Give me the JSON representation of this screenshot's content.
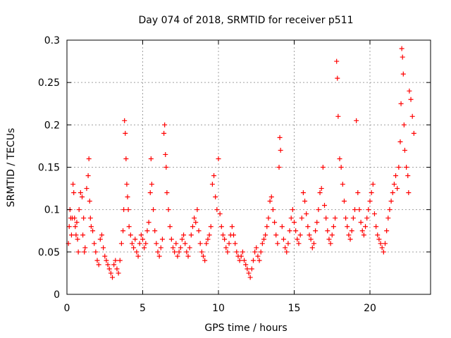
{
  "chart_data": {
    "type": "scatter",
    "title": "Day 074 of 2018, SRMTID for receiver p511",
    "xlabel": "GPS time / hours",
    "ylabel": "SRMTID / TECUs",
    "xlim": [
      0,
      24
    ],
    "ylim": [
      0,
      0.3
    ],
    "x_ticks": [
      0,
      5,
      10,
      15,
      20
    ],
    "x_tick_labels": [
      "0",
      "5",
      "10",
      "15",
      "20"
    ],
    "y_ticks": [
      0,
      0.05,
      0.1,
      0.15,
      0.2,
      0.25,
      0.3
    ],
    "y_tick_labels": [
      "0",
      "0.05",
      "0.1",
      "0.15",
      "0.2",
      "0.25",
      "0.3"
    ],
    "grid": true,
    "marker": "+",
    "color": "#ff0000",
    "series": [
      {
        "name": "SRMTID",
        "points": [
          [
            0.1,
            0.06
          ],
          [
            0.15,
            0.08
          ],
          [
            0.2,
            0.1
          ],
          [
            0.25,
            0.09
          ],
          [
            0.3,
            0.07
          ],
          [
            0.35,
            0.09
          ],
          [
            0.4,
            0.13
          ],
          [
            0.45,
            0.12
          ],
          [
            0.5,
            0.09
          ],
          [
            0.55,
            0.08
          ],
          [
            0.6,
            0.07
          ],
          [
            0.65,
            0.085
          ],
          [
            0.7,
            0.065
          ],
          [
            0.75,
            0.05
          ],
          [
            0.8,
            0.1
          ],
          [
            0.9,
            0.12
          ],
          [
            1.0,
            0.115
          ],
          [
            1.05,
            0.07
          ],
          [
            1.1,
            0.09
          ],
          [
            1.15,
            0.05
          ],
          [
            1.2,
            0.055
          ],
          [
            1.3,
            0.125
          ],
          [
            1.4,
            0.14
          ],
          [
            1.45,
            0.16
          ],
          [
            1.5,
            0.11
          ],
          [
            1.55,
            0.09
          ],
          [
            1.6,
            0.08
          ],
          [
            1.7,
            0.075
          ],
          [
            1.8,
            0.06
          ],
          [
            1.9,
            0.05
          ],
          [
            2.0,
            0.04
          ],
          [
            2.1,
            0.035
          ],
          [
            2.2,
            0.065
          ],
          [
            2.3,
            0.07
          ],
          [
            2.4,
            0.055
          ],
          [
            2.5,
            0.045
          ],
          [
            2.6,
            0.04
          ],
          [
            2.7,
            0.035
          ],
          [
            2.8,
            0.03
          ],
          [
            2.9,
            0.025
          ],
          [
            3.0,
            0.02
          ],
          [
            3.1,
            0.035
          ],
          [
            3.2,
            0.04
          ],
          [
            3.3,
            0.03
          ],
          [
            3.4,
            0.025
          ],
          [
            3.5,
            0.04
          ],
          [
            3.6,
            0.06
          ],
          [
            3.7,
            0.075
          ],
          [
            3.75,
            0.1
          ],
          [
            3.8,
            0.205
          ],
          [
            3.85,
            0.19
          ],
          [
            3.9,
            0.16
          ],
          [
            3.95,
            0.13
          ],
          [
            4.0,
            0.115
          ],
          [
            4.05,
            0.1
          ],
          [
            4.1,
            0.08
          ],
          [
            4.2,
            0.07
          ],
          [
            4.3,
            0.06
          ],
          [
            4.4,
            0.055
          ],
          [
            4.5,
            0.065
          ],
          [
            4.6,
            0.05
          ],
          [
            4.7,
            0.045
          ],
          [
            4.8,
            0.06
          ],
          [
            4.9,
            0.07
          ],
          [
            5.0,
            0.065
          ],
          [
            5.1,
            0.055
          ],
          [
            5.2,
            0.06
          ],
          [
            5.3,
            0.075
          ],
          [
            5.4,
            0.085
          ],
          [
            5.5,
            0.12
          ],
          [
            5.55,
            0.16
          ],
          [
            5.6,
            0.13
          ],
          [
            5.7,
            0.1
          ],
          [
            5.8,
            0.075
          ],
          [
            5.9,
            0.06
          ],
          [
            6.0,
            0.05
          ],
          [
            6.1,
            0.045
          ],
          [
            6.2,
            0.055
          ],
          [
            6.3,
            0.065
          ],
          [
            6.4,
            0.19
          ],
          [
            6.45,
            0.2
          ],
          [
            6.5,
            0.165
          ],
          [
            6.55,
            0.15
          ],
          [
            6.6,
            0.12
          ],
          [
            6.7,
            0.1
          ],
          [
            6.8,
            0.08
          ],
          [
            6.9,
            0.065
          ],
          [
            7.0,
            0.055
          ],
          [
            7.1,
            0.05
          ],
          [
            7.2,
            0.06
          ],
          [
            7.3,
            0.045
          ],
          [
            7.4,
            0.05
          ],
          [
            7.5,
            0.055
          ],
          [
            7.6,
            0.065
          ],
          [
            7.7,
            0.07
          ],
          [
            7.8,
            0.06
          ],
          [
            7.9,
            0.05
          ],
          [
            8.0,
            0.045
          ],
          [
            8.1,
            0.055
          ],
          [
            8.2,
            0.07
          ],
          [
            8.3,
            0.08
          ],
          [
            8.4,
            0.09
          ],
          [
            8.5,
            0.085
          ],
          [
            8.6,
            0.1
          ],
          [
            8.7,
            0.075
          ],
          [
            8.8,
            0.06
          ],
          [
            8.9,
            0.05
          ],
          [
            9.0,
            0.045
          ],
          [
            9.1,
            0.04
          ],
          [
            9.2,
            0.06
          ],
          [
            9.3,
            0.065
          ],
          [
            9.4,
            0.07
          ],
          [
            9.5,
            0.08
          ],
          [
            9.6,
            0.13
          ],
          [
            9.7,
            0.14
          ],
          [
            9.8,
            0.115
          ],
          [
            9.9,
            0.1
          ],
          [
            10.0,
            0.16
          ],
          [
            10.1,
            0.095
          ],
          [
            10.2,
            0.08
          ],
          [
            10.3,
            0.07
          ],
          [
            10.4,
            0.065
          ],
          [
            10.5,
            0.055
          ],
          [
            10.6,
            0.05
          ],
          [
            10.7,
            0.06
          ],
          [
            10.8,
            0.07
          ],
          [
            10.9,
            0.08
          ],
          [
            11.0,
            0.07
          ],
          [
            11.1,
            0.06
          ],
          [
            11.2,
            0.05
          ],
          [
            11.3,
            0.045
          ],
          [
            11.4,
            0.04
          ],
          [
            11.5,
            0.045
          ],
          [
            11.6,
            0.05
          ],
          [
            11.7,
            0.04
          ],
          [
            11.8,
            0.035
          ],
          [
            11.9,
            0.03
          ],
          [
            12.0,
            0.025
          ],
          [
            12.1,
            0.02
          ],
          [
            12.2,
            0.03
          ],
          [
            12.3,
            0.04
          ],
          [
            12.4,
            0.05
          ],
          [
            12.5,
            0.055
          ],
          [
            12.6,
            0.045
          ],
          [
            12.7,
            0.04
          ],
          [
            12.8,
            0.05
          ],
          [
            12.9,
            0.06
          ],
          [
            13.0,
            0.065
          ],
          [
            13.1,
            0.07
          ],
          [
            13.2,
            0.08
          ],
          [
            13.3,
            0.09
          ],
          [
            13.4,
            0.11
          ],
          [
            13.5,
            0.115
          ],
          [
            13.6,
            0.1
          ],
          [
            13.7,
            0.085
          ],
          [
            13.8,
            0.07
          ],
          [
            13.9,
            0.06
          ],
          [
            14.0,
            0.15
          ],
          [
            14.05,
            0.185
          ],
          [
            14.1,
            0.17
          ],
          [
            14.2,
            0.08
          ],
          [
            14.3,
            0.065
          ],
          [
            14.4,
            0.055
          ],
          [
            14.5,
            0.05
          ],
          [
            14.6,
            0.06
          ],
          [
            14.7,
            0.075
          ],
          [
            14.8,
            0.09
          ],
          [
            14.9,
            0.1
          ],
          [
            15.0,
            0.085
          ],
          [
            15.1,
            0.075
          ],
          [
            15.2,
            0.065
          ],
          [
            15.3,
            0.06
          ],
          [
            15.4,
            0.07
          ],
          [
            15.5,
            0.09
          ],
          [
            15.6,
            0.12
          ],
          [
            15.7,
            0.11
          ],
          [
            15.8,
            0.095
          ],
          [
            15.9,
            0.08
          ],
          [
            16.0,
            0.07
          ],
          [
            16.1,
            0.065
          ],
          [
            16.2,
            0.055
          ],
          [
            16.3,
            0.06
          ],
          [
            16.4,
            0.075
          ],
          [
            16.5,
            0.085
          ],
          [
            16.6,
            0.1
          ],
          [
            16.7,
            0.12
          ],
          [
            16.8,
            0.125
          ],
          [
            16.9,
            0.15
          ],
          [
            17.0,
            0.105
          ],
          [
            17.1,
            0.09
          ],
          [
            17.2,
            0.075
          ],
          [
            17.3,
            0.065
          ],
          [
            17.4,
            0.06
          ],
          [
            17.5,
            0.07
          ],
          [
            17.6,
            0.08
          ],
          [
            17.7,
            0.09
          ],
          [
            17.8,
            0.275
          ],
          [
            17.85,
            0.255
          ],
          [
            17.9,
            0.21
          ],
          [
            18.0,
            0.16
          ],
          [
            18.1,
            0.15
          ],
          [
            18.2,
            0.13
          ],
          [
            18.3,
            0.11
          ],
          [
            18.4,
            0.09
          ],
          [
            18.5,
            0.08
          ],
          [
            18.6,
            0.07
          ],
          [
            18.7,
            0.065
          ],
          [
            18.8,
            0.075
          ],
          [
            18.9,
            0.09
          ],
          [
            19.0,
            0.1
          ],
          [
            19.1,
            0.205
          ],
          [
            19.2,
            0.12
          ],
          [
            19.3,
            0.1
          ],
          [
            19.4,
            0.085
          ],
          [
            19.5,
            0.075
          ],
          [
            19.6,
            0.07
          ],
          [
            19.7,
            0.08
          ],
          [
            19.8,
            0.09
          ],
          [
            19.9,
            0.1
          ],
          [
            20.0,
            0.11
          ],
          [
            20.1,
            0.12
          ],
          [
            20.2,
            0.13
          ],
          [
            20.3,
            0.095
          ],
          [
            20.4,
            0.08
          ],
          [
            20.5,
            0.07
          ],
          [
            20.6,
            0.065
          ],
          [
            20.7,
            0.06
          ],
          [
            20.8,
            0.055
          ],
          [
            20.9,
            0.05
          ],
          [
            21.0,
            0.06
          ],
          [
            21.1,
            0.075
          ],
          [
            21.2,
            0.09
          ],
          [
            21.3,
            0.1
          ],
          [
            21.4,
            0.11
          ],
          [
            21.5,
            0.12
          ],
          [
            21.6,
            0.13
          ],
          [
            21.7,
            0.14
          ],
          [
            21.8,
            0.125
          ],
          [
            21.9,
            0.15
          ],
          [
            22.0,
            0.18
          ],
          [
            22.05,
            0.225
          ],
          [
            22.1,
            0.29
          ],
          [
            22.15,
            0.28
          ],
          [
            22.2,
            0.26
          ],
          [
            22.25,
            0.2
          ],
          [
            22.3,
            0.17
          ],
          [
            22.4,
            0.15
          ],
          [
            22.5,
            0.14
          ],
          [
            22.55,
            0.12
          ],
          [
            22.6,
            0.24
          ],
          [
            22.7,
            0.23
          ],
          [
            22.8,
            0.21
          ],
          [
            22.9,
            0.19
          ]
        ]
      }
    ]
  }
}
